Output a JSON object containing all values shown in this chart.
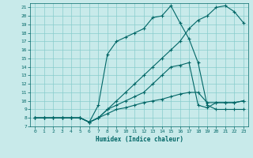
{
  "title": "",
  "xlabel": "Humidex (Indice chaleur)",
  "ylabel": "",
  "bg_color": "#c8eaea",
  "grid_color": "#88cccc",
  "line_color": "#006666",
  "xlim": [
    -0.5,
    23.5
  ],
  "ylim": [
    7,
    21.5
  ],
  "xticks": [
    0,
    1,
    2,
    3,
    4,
    5,
    6,
    7,
    8,
    9,
    10,
    11,
    12,
    13,
    14,
    15,
    16,
    17,
    18,
    19,
    20,
    21,
    22,
    23
  ],
  "yticks": [
    7,
    8,
    9,
    10,
    11,
    12,
    13,
    14,
    15,
    16,
    17,
    18,
    19,
    20,
    21
  ],
  "lines": [
    {
      "x": [
        0,
        1,
        2,
        3,
        4,
        5,
        6,
        7,
        8,
        9,
        10,
        11,
        12,
        13,
        14,
        15,
        16,
        17,
        18,
        19,
        20,
        21,
        22,
        23
      ],
      "y": [
        8,
        8,
        8,
        8,
        8,
        8,
        7.5,
        9.5,
        15.5,
        17.0,
        17.5,
        18.0,
        18.5,
        19.8,
        20.0,
        21.2,
        19.2,
        17.3,
        14.5,
        9.5,
        9.0,
        9.0,
        9.0,
        9.0
      ]
    },
    {
      "x": [
        0,
        1,
        2,
        3,
        4,
        5,
        6,
        7,
        8,
        9,
        10,
        11,
        12,
        13,
        14,
        15,
        16,
        17,
        18,
        19,
        20,
        21,
        22,
        23
      ],
      "y": [
        8,
        8,
        8,
        8,
        8,
        8,
        7.5,
        8.0,
        9.0,
        10.0,
        11.0,
        12.0,
        13.0,
        14.0,
        15.0,
        16.0,
        17.0,
        18.5,
        19.5,
        20.0,
        21.0,
        21.2,
        20.5,
        19.2
      ]
    },
    {
      "x": [
        0,
        1,
        2,
        3,
        4,
        5,
        6,
        7,
        8,
        9,
        10,
        11,
        12,
        13,
        14,
        15,
        16,
        17,
        18,
        19,
        20,
        21,
        22,
        23
      ],
      "y": [
        8,
        8,
        8,
        8,
        8,
        8,
        7.5,
        8.0,
        9.0,
        9.5,
        10.0,
        10.5,
        11.0,
        12.0,
        13.0,
        14.0,
        14.2,
        14.5,
        9.5,
        9.2,
        9.8,
        9.8,
        9.8,
        10.0
      ]
    },
    {
      "x": [
        0,
        1,
        2,
        3,
        4,
        5,
        6,
        7,
        8,
        9,
        10,
        11,
        12,
        13,
        14,
        15,
        16,
        17,
        18,
        19,
        20,
        21,
        22,
        23
      ],
      "y": [
        8,
        8,
        8,
        8,
        8,
        8,
        7.5,
        8.0,
        8.5,
        9.0,
        9.2,
        9.5,
        9.8,
        10.0,
        10.2,
        10.5,
        10.8,
        11.0,
        11.0,
        9.8,
        9.8,
        9.8,
        9.8,
        10.0
      ]
    }
  ]
}
